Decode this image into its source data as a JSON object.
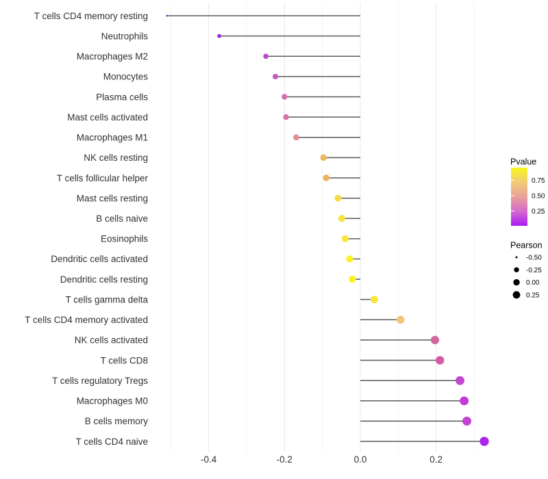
{
  "chart_data": {
    "type": "lollipop",
    "title": "",
    "xlabel": "",
    "ylabel": "",
    "x_tick_labels": [
      "-0.4",
      "-0.2",
      "0.0",
      "0.2"
    ],
    "x_tick_values": [
      -0.4,
      -0.2,
      0.0,
      0.2
    ],
    "x_minor_grid_values": [
      -0.5,
      -0.3,
      -0.1,
      0.1,
      0.3
    ],
    "xlim": [
      -0.552,
      0.37
    ],
    "baseline_x": 0,
    "grid": "vertical light-gray gridlines, white background, no axis lines",
    "points": [
      {
        "label": "T cells CD4 memory resting",
        "pearson": -0.51,
        "color": "#8E28CC"
      },
      {
        "label": "Neutrophils",
        "pearson": -0.372,
        "color": "#9C30D8"
      },
      {
        "label": "Macrophages M2",
        "pearson": -0.249,
        "color": "#B84FC9"
      },
      {
        "label": "Monocytes",
        "pearson": -0.224,
        "color": "#C55DBC"
      },
      {
        "label": "Plasma cells",
        "pearson": -0.2,
        "color": "#D26FB0"
      },
      {
        "label": "Mast cells activated",
        "pearson": -0.196,
        "color": "#D574A9"
      },
      {
        "label": "Macrophages M1",
        "pearson": -0.169,
        "color": "#E28F90"
      },
      {
        "label": "NK cells resting",
        "pearson": -0.097,
        "color": "#EFB75C"
      },
      {
        "label": "T cells follicular helper",
        "pearson": -0.09,
        "color": "#EFB45F"
      },
      {
        "label": "Mast cells resting",
        "pearson": -0.059,
        "color": "#F6DA4B"
      },
      {
        "label": "B cells naive",
        "pearson": -0.049,
        "color": "#F7E23F"
      },
      {
        "label": "Eosinophils",
        "pearson": -0.04,
        "color": "#F8E83B"
      },
      {
        "label": "Dendritic cells activated",
        "pearson": -0.028,
        "color": "#FAF122"
      },
      {
        "label": "Dendritic cells resting",
        "pearson": -0.021,
        "color": "#FAF31E"
      },
      {
        "label": "T cells gamma delta",
        "pearson": 0.037,
        "color": "#F7E73C"
      },
      {
        "label": "T cells CD4 memory activated",
        "pearson": 0.106,
        "color": "#F2C379"
      },
      {
        "label": "NK cells activated",
        "pearson": 0.197,
        "color": "#D2679E"
      },
      {
        "label": "T cells CD8",
        "pearson": 0.21,
        "color": "#D05BA8"
      },
      {
        "label": "T cells regulatory  Tregs",
        "pearson": 0.263,
        "color": "#C247CE"
      },
      {
        "label": "Macrophages M0",
        "pearson": 0.274,
        "color": "#C03DD4"
      },
      {
        "label": "B cells memory",
        "pearson": 0.281,
        "color": "#C242D1"
      },
      {
        "label": "T cells CD4 naive",
        "pearson": 0.327,
        "color": "#AB25EB"
      }
    ]
  },
  "legend": {
    "pvalue": {
      "title": "Pvalue",
      "ticks": [
        "0.75",
        "0.50",
        "0.25"
      ],
      "gradient_stops_top_to_bottom": [
        "#F8F51D",
        "#F3CC74",
        "#E9A099",
        "#D46ACE",
        "#AA1BF4"
      ]
    },
    "pearson": {
      "title": "Pearson",
      "sizes": [
        {
          "label": "-0.50",
          "value": -0.5
        },
        {
          "label": "-0.25",
          "value": -0.25
        },
        {
          "label": "0.00",
          "value": 0.0
        },
        {
          "label": "0.25",
          "value": 0.25
        }
      ]
    }
  },
  "colors": {
    "background": "#FFFFFF",
    "segment": "#595959",
    "axis_text": "#303030",
    "legend_text": "#000000",
    "grid_major": "#E8E8E8",
    "grid_minor": "#F3F3F3"
  }
}
